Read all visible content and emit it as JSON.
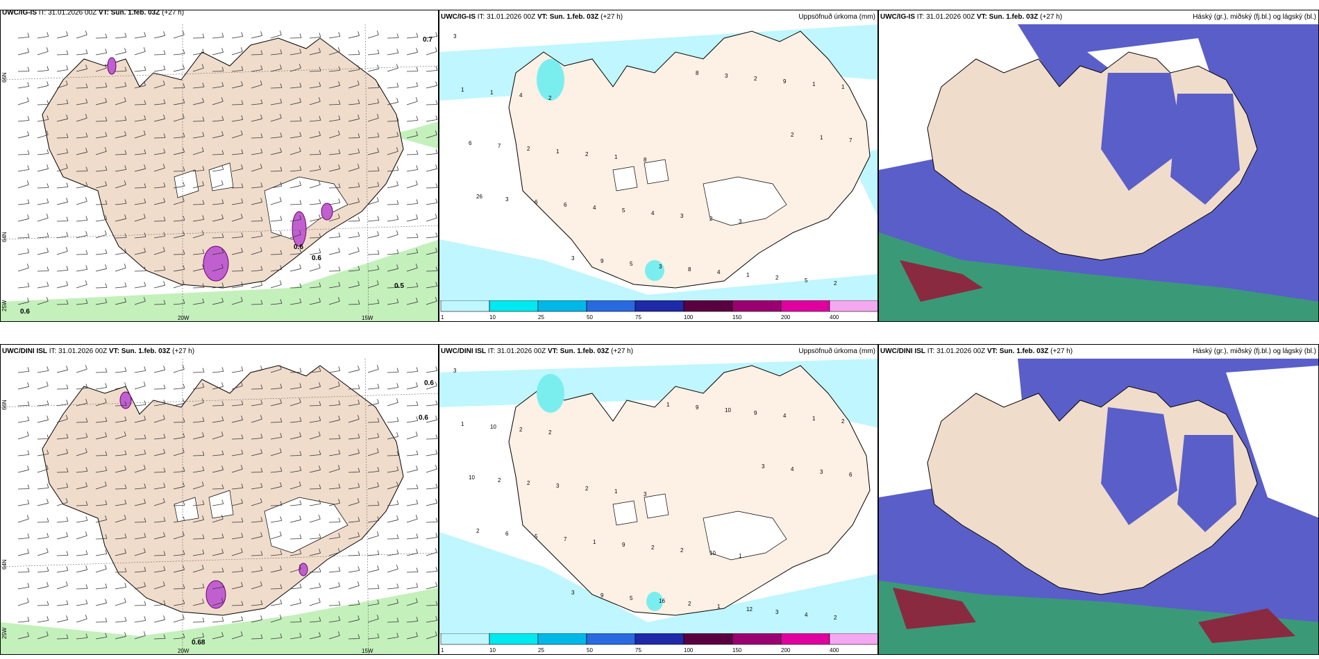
{
  "panels": {
    "r1c1": {
      "header_left": "UWC/IG-IS",
      "header_it": "IT: 31.01.2026 00Z",
      "header_vt": "VT: Sun. 1.feb. 03Z",
      "header_lead": "(+27 h)"
    },
    "r1c2": {
      "header_left": "UWC/IG-IS",
      "header_it": "IT: 31.01.2026 00Z",
      "header_vt": "VT: Sun. 1.feb. 03Z",
      "header_lead": "(+27 h)",
      "header_right": "Uppsöfnuð úrkoma (mm)"
    },
    "r1c3": {
      "header_left": "UWC/IG-IS",
      "header_it": "IT: 31.01.2026 00Z",
      "header_vt": "VT: Sun. 1.feb. 03Z",
      "header_lead": "(+27 h)",
      "header_right": "Háský (gr.), miðský (fj.bl.) og lágský (bl.)"
    },
    "r2c1": {
      "header_left": "UWC/DINI ISL",
      "header_it": "IT: 31.01.2026 00Z",
      "header_vt": "VT: Sun. 1.feb. 03Z",
      "header_lead": "(+27 h)"
    },
    "r2c2": {
      "header_left": "UWC/DINI ISL",
      "header_it": "IT: 31.01.2026 00Z",
      "header_vt": "VT: Sun. 1.feb. 03Z",
      "header_lead": "(+27 h)",
      "header_right": "Uppsöfnuð úrkoma (mm)"
    },
    "r2c3": {
      "header_left": "UWC/DINI ISL",
      "header_it": "IT: 31.01.2026 00Z",
      "header_vt": "VT: Sun. 1.feb. 03Z",
      "header_lead": "(+27 h)",
      "header_right": "Háský (gr.), miðský (fj.bl.) og lágský (bl.)"
    }
  },
  "axes": {
    "lon_labels": [
      "20W",
      "15W"
    ],
    "lat_labels": [
      "66N",
      "64N",
      "25W"
    ]
  },
  "wind_labels_top": [
    "0.7",
    "0.6",
    "0.5",
    "0.6",
    "0.6"
  ],
  "wind_labels_bottom": [
    "0.6",
    "0.6",
    "0.68"
  ],
  "scale": {
    "ticks": [
      "1",
      "10",
      "25",
      "50",
      "75",
      "100",
      "150",
      "200",
      "400"
    ],
    "colors": [
      "#bff6ff",
      "#00e8f0",
      "#00b8e8",
      "#2a6ae0",
      "#1e2aa8",
      "#5a0040",
      "#9a0070",
      "#e000a0",
      "#f4a8f0"
    ]
  },
  "precip_top": [
    "3",
    "2",
    "8",
    "3",
    "2",
    "4",
    "1",
    "2",
    "5",
    "1",
    "2",
    "3",
    "2",
    "1",
    "1",
    "4",
    "1",
    "1",
    "2",
    "5",
    "4",
    "1",
    "7",
    "4",
    "8",
    "9",
    "6",
    "6",
    "3",
    "2",
    "7",
    "6",
    "5",
    "3",
    "1",
    "3",
    "9",
    "8",
    "2",
    "26",
    "3"
  ],
  "precip_bottom": [
    "3",
    "2",
    "3",
    "1",
    "2",
    "2",
    "1",
    "10",
    "4",
    "10",
    "2",
    "2",
    "3",
    "1",
    "3",
    "2",
    "12",
    "2",
    "2",
    "9",
    "1",
    "1",
    "2",
    "1",
    "2",
    "4",
    "10",
    "7",
    "16",
    "9",
    "6",
    "5",
    "5",
    "10",
    "3",
    "6",
    "9",
    "9",
    "4",
    "2",
    "3",
    "1",
    "3"
  ],
  "colors": {
    "land": "#f0dccb",
    "sea": "#ffffff",
    "green": "#b8f0b0",
    "cyan": "#bff6ff",
    "midcloud": "#5a5ec8",
    "lowcloud": "#3a9a78",
    "highcloud": "#8a2a40"
  }
}
